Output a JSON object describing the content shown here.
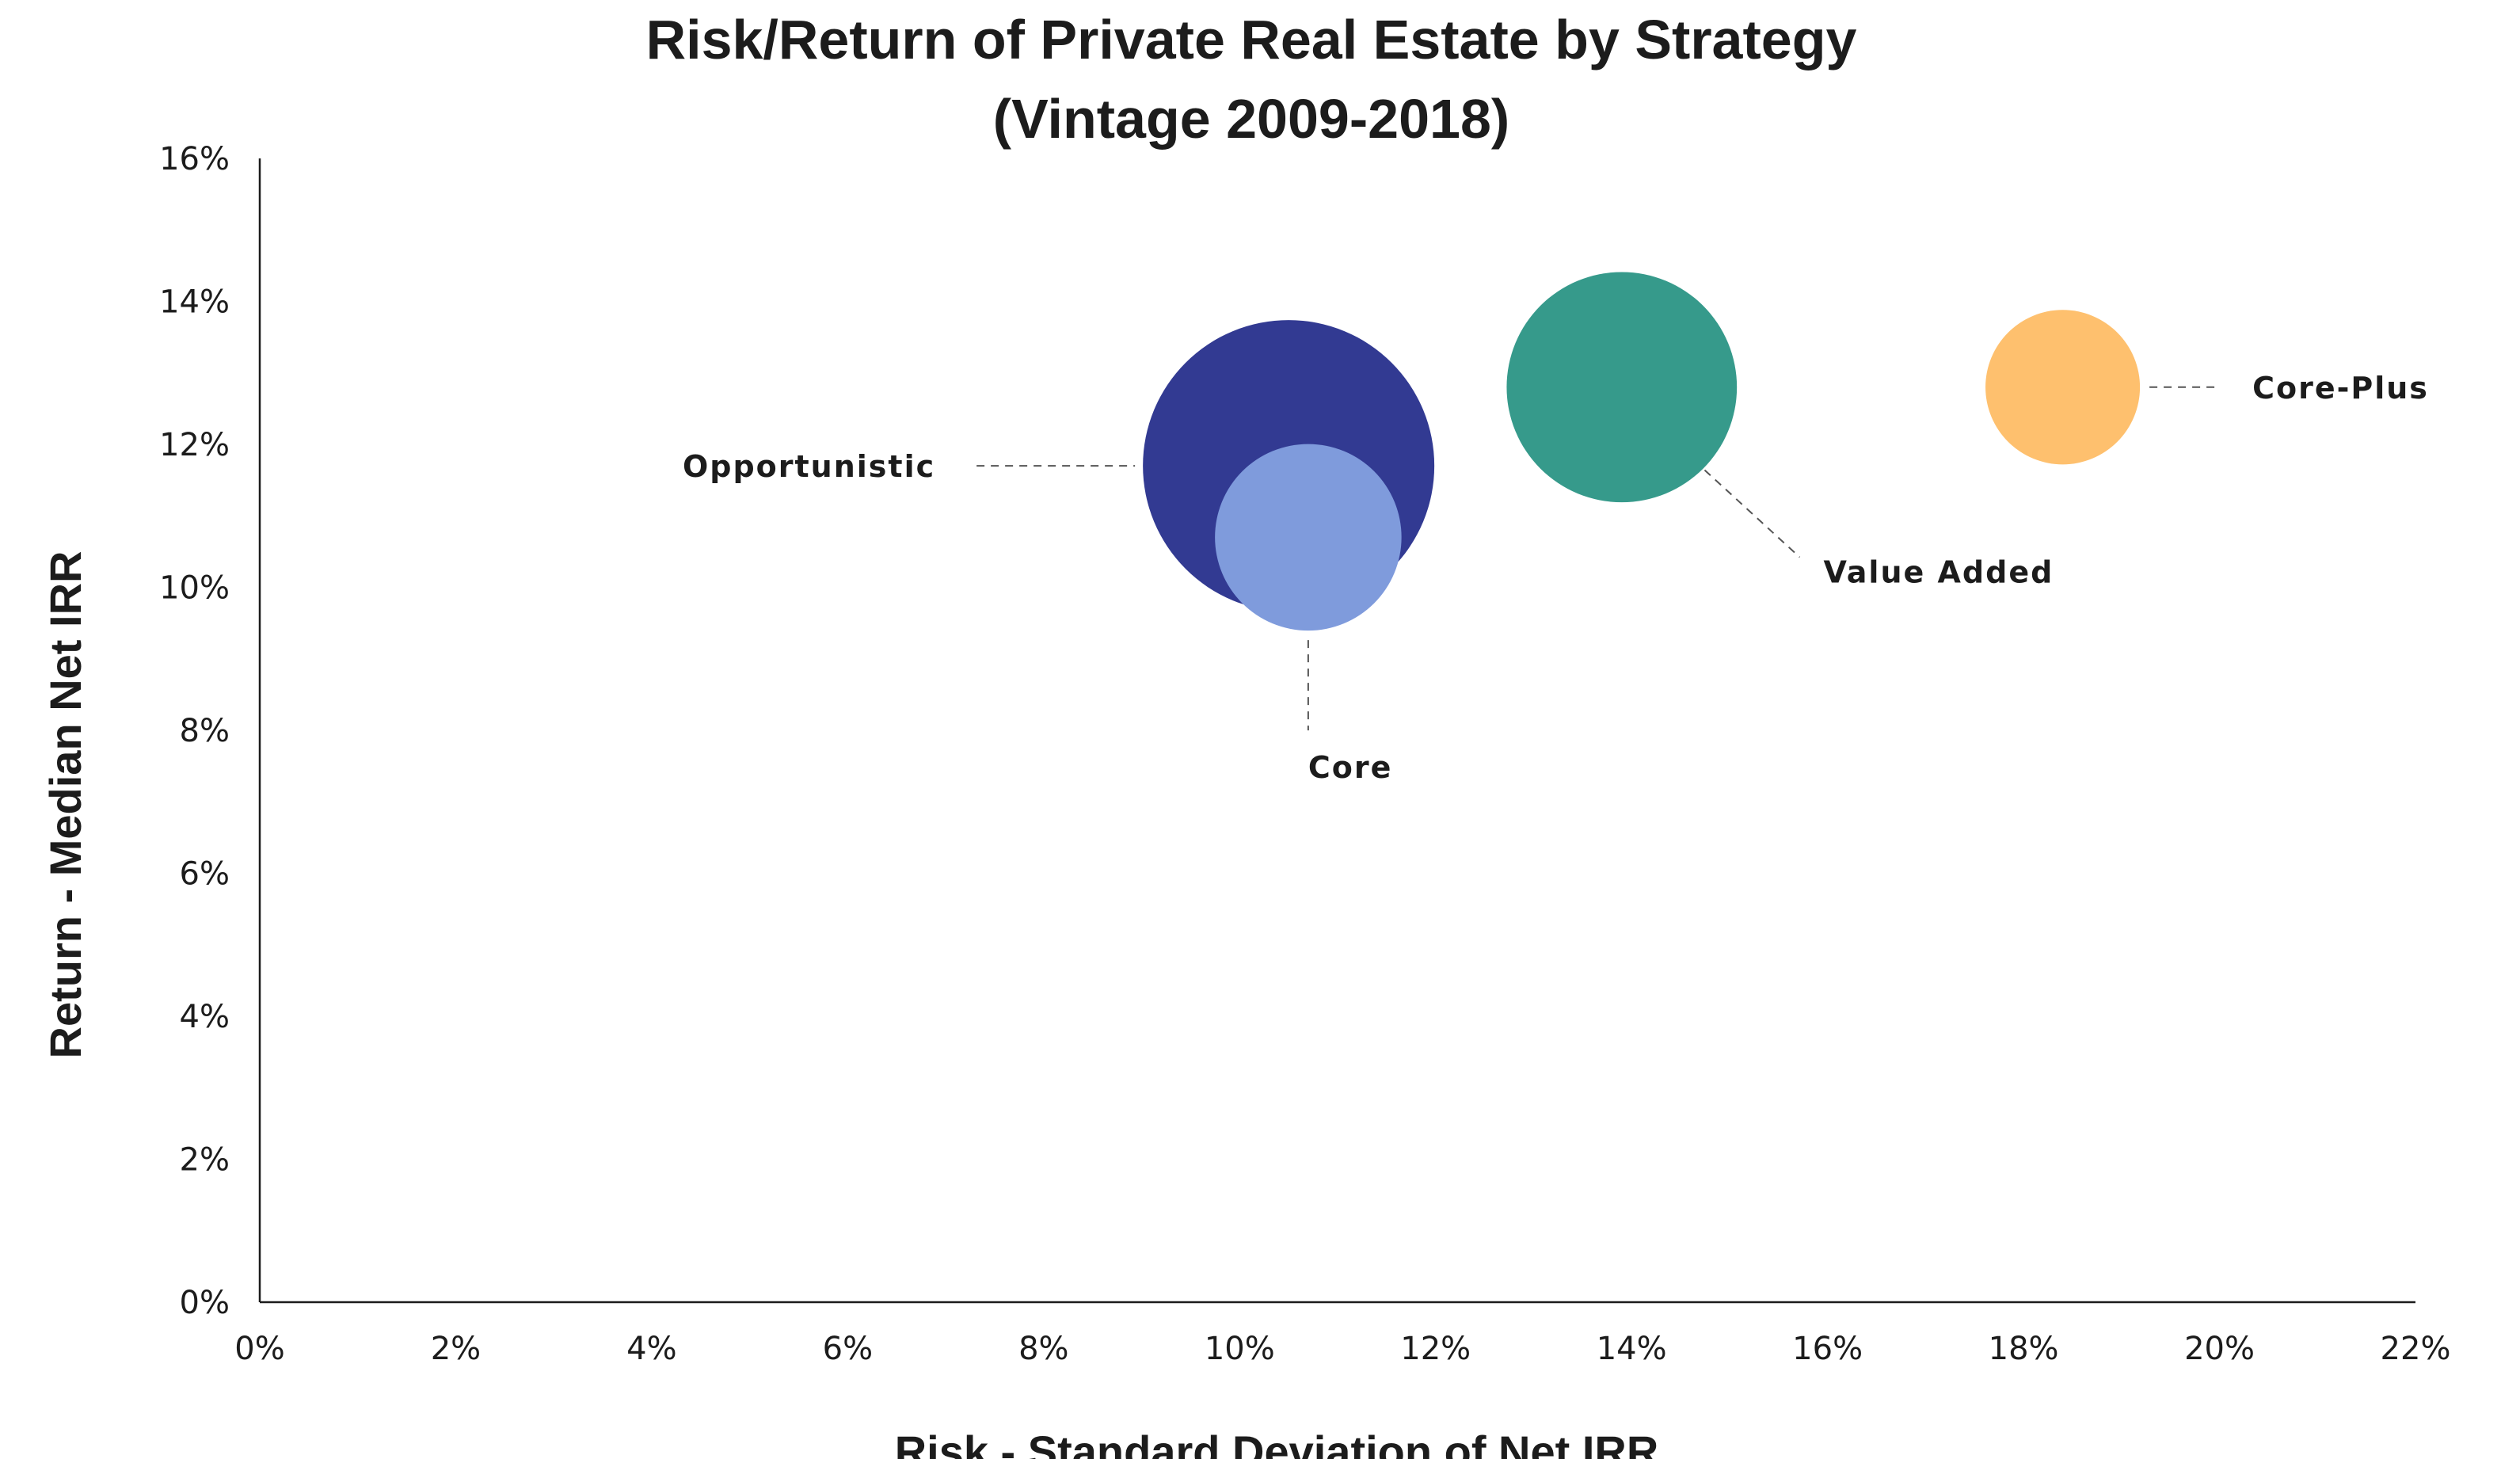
{
  "chart_data": {
    "type": "scatter",
    "title_lines": [
      "Risk/Return of Private Real Estate by  Strategy",
      "(Vintage 2009-2018)"
    ],
    "xlabel": "Risk - Standard Deviation of Net IRR",
    "ylabel": "Return - Median Net IRR",
    "xlim": [
      0,
      22
    ],
    "ylim": [
      0,
      16
    ],
    "x_ticks": [
      0,
      2,
      4,
      6,
      8,
      10,
      12,
      14,
      16,
      18,
      20,
      22
    ],
    "y_ticks": [
      0,
      2,
      4,
      6,
      8,
      10,
      12,
      14,
      16
    ],
    "x_tick_labels": [
      "0%",
      "2%",
      "4%",
      "6%",
      "8%",
      "10%",
      "12%",
      "14%",
      "16%",
      "18%",
      "20%",
      "22%"
    ],
    "y_tick_labels": [
      "0%",
      "2%",
      "4%",
      "6%",
      "8%",
      "10%",
      "12%",
      "14%",
      "16%"
    ],
    "grid": false,
    "legend": "none",
    "series": [
      {
        "name": "Opportunistic",
        "x": 10.5,
        "y": 11.7,
        "size": 1.0,
        "color": "#323a92",
        "label_side": "left"
      },
      {
        "name": "Value Added",
        "x": 13.9,
        "y": 12.8,
        "size": 0.79,
        "color": "#369a8b",
        "label_side": "lower-right"
      },
      {
        "name": "Core-Plus",
        "x": 18.4,
        "y": 12.8,
        "size": 0.53,
        "color": "#fec06e",
        "label_side": "right"
      },
      {
        "name": "Core",
        "x": 10.7,
        "y": 10.7,
        "size": 0.64,
        "color": "#7f9bdc",
        "label_side": "below"
      }
    ]
  }
}
